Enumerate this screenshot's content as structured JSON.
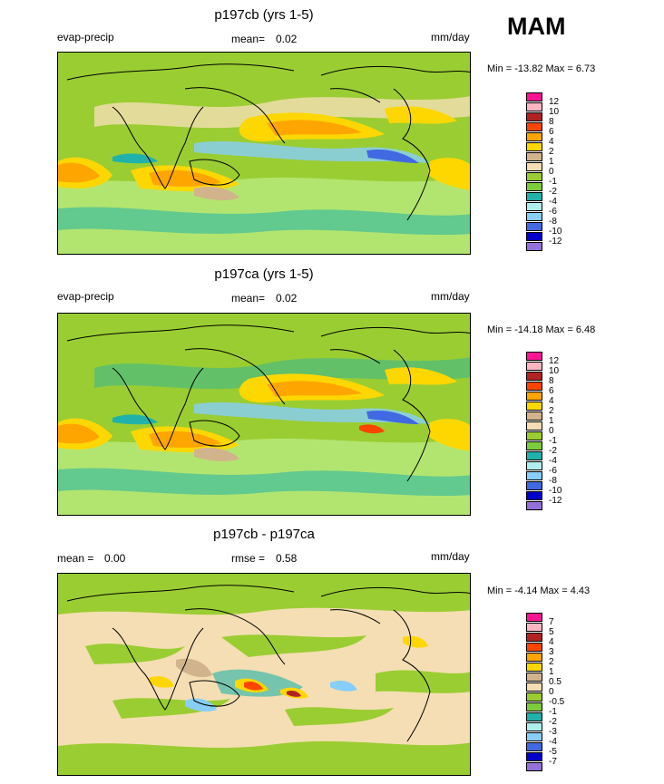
{
  "season": "MAM",
  "panels": [
    {
      "title": "p197cb (yrs 1-5)",
      "left_label": "evap-precip",
      "mean_label": "mean=",
      "mean_value": "0.02",
      "units": "mm/day",
      "minmax_text": "Min = -13.82 Max =   6.73",
      "colorbar_labels": [
        "12",
        "10",
        "8",
        "6",
        "4",
        "2",
        "1",
        "0",
        "-1",
        "-2",
        "-4",
        "-6",
        "-8",
        "-10",
        "-12"
      ],
      "colorbar_colors": [
        "#ff1493",
        "#ffb6c1",
        "#b22222",
        "#ff4500",
        "#ffa500",
        "#ffd700",
        "#d2b48c",
        "#f5deb3",
        "#9acd32",
        "#7ccd3c",
        "#20b2aa",
        "#afeeee",
        "#87cefa",
        "#4169e1",
        "#0000cd",
        "#9370db"
      ]
    },
    {
      "title": "p197ca (yrs 1-5)",
      "left_label": "evap-precip",
      "mean_label": "mean=",
      "mean_value": "0.02",
      "units": "mm/day",
      "minmax_text": "Min = -14.18 Max =   6.48",
      "colorbar_labels": [
        "12",
        "10",
        "8",
        "6",
        "4",
        "2",
        "1",
        "0",
        "-1",
        "-2",
        "-4",
        "-6",
        "-8",
        "-10",
        "-12"
      ],
      "colorbar_colors": [
        "#ff1493",
        "#ffb6c1",
        "#b22222",
        "#ff4500",
        "#ffa500",
        "#ffd700",
        "#d2b48c",
        "#f5deb3",
        "#9acd32",
        "#7ccd3c",
        "#20b2aa",
        "#afeeee",
        "#87cefa",
        "#4169e1",
        "#0000cd",
        "#9370db"
      ]
    },
    {
      "title": "p197cb - p197ca",
      "left_label": "mean =",
      "left_value": "0.00",
      "mean_label": "rmse =",
      "mean_value": "0.58",
      "units": "mm/day",
      "minmax_text": "Min =  -4.14 Max =   4.43",
      "colorbar_labels": [
        "7",
        "5",
        "4",
        "3",
        "2",
        "1",
        "0.5",
        "0",
        "-0.5",
        "-1",
        "-2",
        "-3",
        "-4",
        "-5",
        "-7"
      ],
      "colorbar_colors": [
        "#ff1493",
        "#ffb6c1",
        "#b22222",
        "#ff4500",
        "#ffa500",
        "#ffd700",
        "#d2b48c",
        "#f5deb3",
        "#9acd32",
        "#7ccd3c",
        "#20b2aa",
        "#afeeee",
        "#87cefa",
        "#4169e1",
        "#0000cd",
        "#9370db"
      ]
    }
  ]
}
